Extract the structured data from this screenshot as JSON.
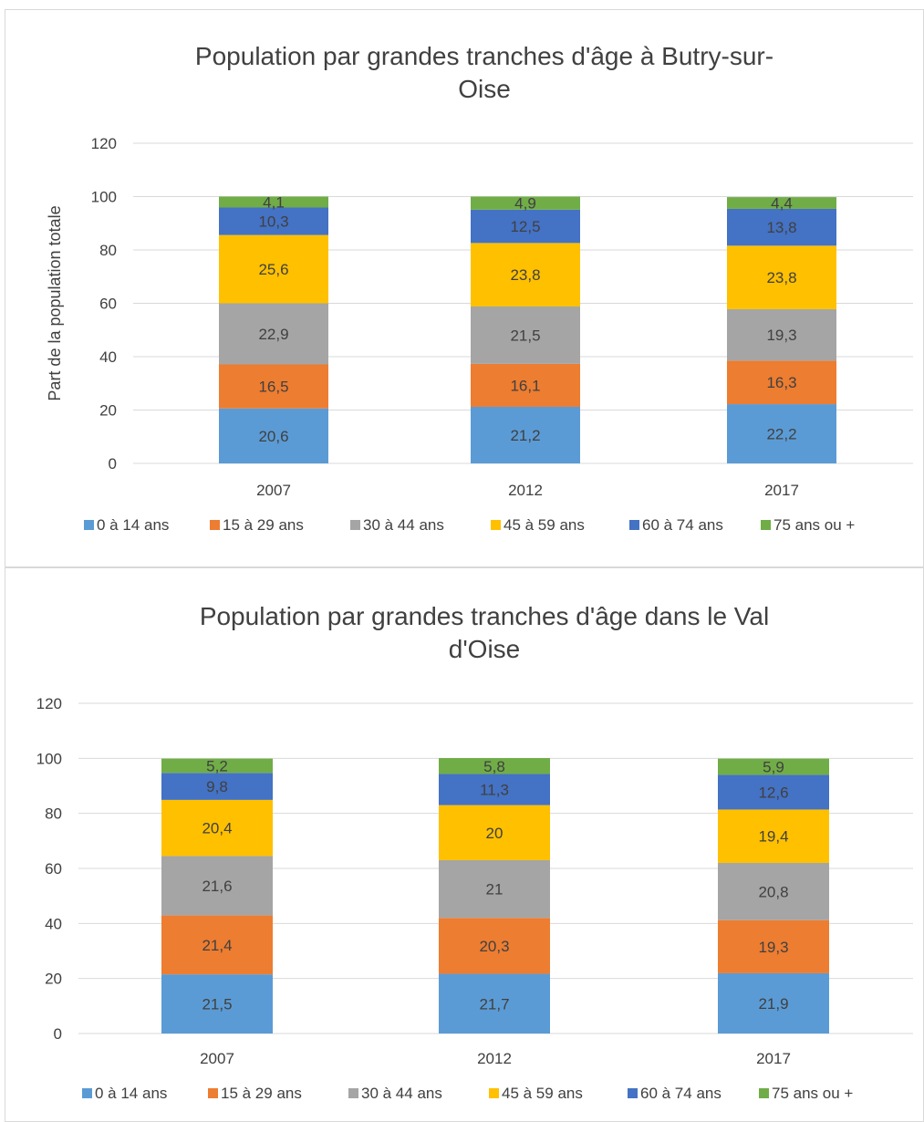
{
  "chart_data": [
    {
      "type": "bar",
      "stacked": true,
      "title_lines": [
        "Population par grandes tranches d'âge  à Butry-sur-",
        "Oise"
      ],
      "ylabel": "Part de la population totale",
      "xlabel": "",
      "ylim": [
        0,
        120
      ],
      "yticks": [
        "0",
        "20",
        "40",
        "60",
        "80",
        "100",
        "120"
      ],
      "categories": [
        "2007",
        "2012",
        "2017"
      ],
      "grid": true,
      "legend_position": "bottom",
      "series": [
        {
          "name": "0 à 14 ans",
          "color": "#5b9bd5",
          "values": [
            20.6,
            21.2,
            22.2
          ],
          "labels": [
            "20,6",
            "21,2",
            "22,2"
          ]
        },
        {
          "name": "15 à 29 ans",
          "color": "#ed7d31",
          "values": [
            16.5,
            16.1,
            16.3
          ],
          "labels": [
            "16,5",
            "16,1",
            "16,3"
          ]
        },
        {
          "name": "30 à 44 ans",
          "color": "#a5a5a5",
          "values": [
            22.9,
            21.5,
            19.3
          ],
          "labels": [
            "22,9",
            "21,5",
            "19,3"
          ]
        },
        {
          "name": "45 à 59 ans",
          "color": "#ffc000",
          "values": [
            25.6,
            23.8,
            23.8
          ],
          "labels": [
            "25,6",
            "23,8",
            "23,8"
          ]
        },
        {
          "name": "60 à 74 ans",
          "color": "#4472c4",
          "values": [
            10.3,
            12.5,
            13.8
          ],
          "labels": [
            "10,3",
            "12,5",
            "13,8"
          ]
        },
        {
          "name": "75 ans ou +",
          "color": "#70ad47",
          "values": [
            4.1,
            4.9,
            4.4
          ],
          "labels": [
            "4,1",
            "4,9",
            "4,4"
          ]
        }
      ]
    },
    {
      "type": "bar",
      "stacked": true,
      "title_lines": [
        "Population par grandes tranches d'âge  dans le Val",
        "d'Oise"
      ],
      "ylabel": "",
      "xlabel": "",
      "ylim": [
        0,
        120
      ],
      "yticks": [
        "0",
        "20",
        "40",
        "60",
        "80",
        "100",
        "120"
      ],
      "categories": [
        "2007",
        "2012",
        "2017"
      ],
      "grid": true,
      "legend_position": "bottom",
      "series": [
        {
          "name": "0 à 14 ans",
          "color": "#5b9bd5",
          "values": [
            21.5,
            21.7,
            21.9
          ],
          "labels": [
            "21,5",
            "21,7",
            "21,9"
          ]
        },
        {
          "name": "15 à 29 ans",
          "color": "#ed7d31",
          "values": [
            21.4,
            20.3,
            19.3
          ],
          "labels": [
            "21,4",
            "20,3",
            "19,3"
          ]
        },
        {
          "name": "30 à 44 ans",
          "color": "#a5a5a5",
          "values": [
            21.6,
            21,
            20.8
          ],
          "labels": [
            "21,6",
            "21",
            "20,8"
          ]
        },
        {
          "name": "45 à 59 ans",
          "color": "#ffc000",
          "values": [
            20.4,
            20,
            19.4
          ],
          "labels": [
            "20,4",
            "20",
            "19,4"
          ]
        },
        {
          "name": "60 à 74 ans",
          "color": "#4472c4",
          "values": [
            9.8,
            11.3,
            12.6
          ],
          "labels": [
            "9,8",
            "11,3",
            "12,6"
          ]
        },
        {
          "name": "75 ans ou +",
          "color": "#70ad47",
          "values": [
            5.2,
            5.8,
            5.9
          ],
          "labels": [
            "5,2",
            "5,8",
            "5,9"
          ]
        }
      ]
    }
  ]
}
